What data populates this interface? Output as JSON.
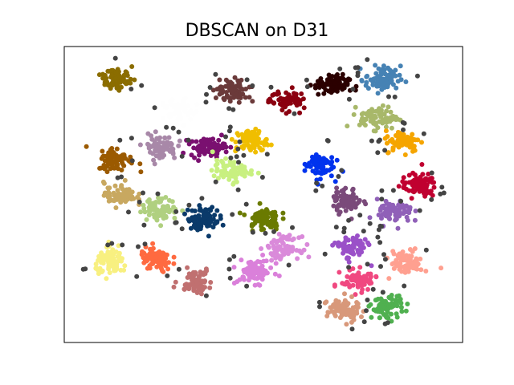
{
  "chart_data": {
    "type": "scatter",
    "title": "DBSCAN on D31",
    "xlabel": "",
    "ylabel": "",
    "axis_ticks": false,
    "grid": false,
    "point_color_noise": "#444444",
    "clusters": [
      {
        "cx": 0.13,
        "cy": 0.89,
        "sx": 0.02,
        "sy": 0.018,
        "n": 70,
        "color": "#8B6D00"
      },
      {
        "cx": 0.42,
        "cy": 0.85,
        "sx": 0.02,
        "sy": 0.02,
        "n": 80,
        "color": "#6B3A3A"
      },
      {
        "cx": 0.56,
        "cy": 0.82,
        "sx": 0.02,
        "sy": 0.017,
        "n": 70,
        "color": "#8B0010"
      },
      {
        "cx": 0.67,
        "cy": 0.87,
        "sx": 0.022,
        "sy": 0.017,
        "n": 80,
        "color": "#2B0000"
      },
      {
        "cx": 0.8,
        "cy": 0.89,
        "sx": 0.022,
        "sy": 0.022,
        "n": 80,
        "color": "#4682B4"
      },
      {
        "cx": 0.79,
        "cy": 0.76,
        "sx": 0.024,
        "sy": 0.019,
        "n": 80,
        "color": "#A8B86A"
      },
      {
        "cx": 0.85,
        "cy": 0.68,
        "sx": 0.022,
        "sy": 0.018,
        "n": 80,
        "color": "#F5A500"
      },
      {
        "cx": 0.13,
        "cy": 0.62,
        "sx": 0.022,
        "sy": 0.02,
        "n": 80,
        "color": "#9B5A00"
      },
      {
        "cx": 0.24,
        "cy": 0.66,
        "sx": 0.021,
        "sy": 0.021,
        "n": 80,
        "color": "#A888A8"
      },
      {
        "cx": 0.36,
        "cy": 0.66,
        "sx": 0.022,
        "sy": 0.015,
        "n": 75,
        "color": "#7A1070"
      },
      {
        "cx": 0.47,
        "cy": 0.68,
        "sx": 0.02,
        "sy": 0.02,
        "n": 75,
        "color": "#F0BE00"
      },
      {
        "cx": 0.42,
        "cy": 0.58,
        "sx": 0.024,
        "sy": 0.018,
        "n": 75,
        "color": "#C8F080"
      },
      {
        "cx": 0.64,
        "cy": 0.6,
        "sx": 0.018,
        "sy": 0.022,
        "n": 75,
        "color": "#0033EE"
      },
      {
        "cx": 0.89,
        "cy": 0.53,
        "sx": 0.022,
        "sy": 0.02,
        "n": 80,
        "color": "#C00030"
      },
      {
        "cx": 0.14,
        "cy": 0.5,
        "sx": 0.02,
        "sy": 0.02,
        "n": 75,
        "color": "#C8A860"
      },
      {
        "cx": 0.24,
        "cy": 0.45,
        "sx": 0.022,
        "sy": 0.018,
        "n": 80,
        "color": "#B0D080"
      },
      {
        "cx": 0.35,
        "cy": 0.42,
        "sx": 0.02,
        "sy": 0.02,
        "n": 80,
        "color": "#0A3A6A"
      },
      {
        "cx": 0.5,
        "cy": 0.42,
        "sx": 0.02,
        "sy": 0.02,
        "n": 80,
        "color": "#6A7A00"
      },
      {
        "cx": 0.71,
        "cy": 0.48,
        "sx": 0.018,
        "sy": 0.02,
        "n": 70,
        "color": "#7A4A7A"
      },
      {
        "cx": 0.83,
        "cy": 0.44,
        "sx": 0.022,
        "sy": 0.02,
        "n": 80,
        "color": "#9060B8"
      },
      {
        "cx": 0.12,
        "cy": 0.27,
        "sx": 0.02,
        "sy": 0.021,
        "n": 80,
        "color": "#F8F080"
      },
      {
        "cx": 0.23,
        "cy": 0.28,
        "sx": 0.02,
        "sy": 0.021,
        "n": 80,
        "color": "#FF6A40"
      },
      {
        "cx": 0.33,
        "cy": 0.21,
        "sx": 0.02,
        "sy": 0.02,
        "n": 75,
        "color": "#C07070"
      },
      {
        "cx": 0.55,
        "cy": 0.32,
        "sx": 0.02,
        "sy": 0.018,
        "n": 75,
        "color": "#DA8ADA"
      },
      {
        "cx": 0.48,
        "cy": 0.24,
        "sx": 0.022,
        "sy": 0.02,
        "n": 80,
        "color": "#DA80DA"
      },
      {
        "cx": 0.72,
        "cy": 0.32,
        "sx": 0.02,
        "sy": 0.02,
        "n": 75,
        "color": "#9A50C8"
      },
      {
        "cx": 0.86,
        "cy": 0.27,
        "sx": 0.02,
        "sy": 0.02,
        "n": 75,
        "color": "#FFA090"
      },
      {
        "cx": 0.74,
        "cy": 0.21,
        "sx": 0.022,
        "sy": 0.017,
        "n": 80,
        "color": "#F04880"
      },
      {
        "cx": 0.7,
        "cy": 0.11,
        "sx": 0.02,
        "sy": 0.02,
        "n": 80,
        "color": "#D8987A"
      },
      {
        "cx": 0.81,
        "cy": 0.12,
        "sx": 0.02,
        "sy": 0.02,
        "n": 80,
        "color": "#50B050"
      },
      {
        "cx": 0.29,
        "cy": 0.78,
        "sx": 0.02,
        "sy": 0.02,
        "n": 50,
        "color": "#FEFEFE"
      }
    ],
    "noise_count": 140
  }
}
